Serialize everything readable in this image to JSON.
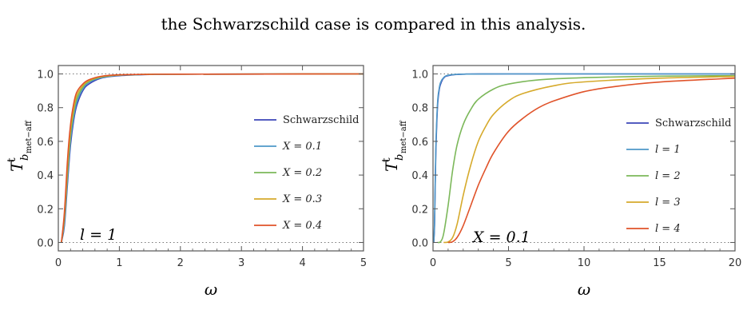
{
  "caption": "the Schwarzschild case is compared in this analysis.",
  "chart_data": [
    {
      "type": "line",
      "title": "",
      "xlabel": "ω",
      "ylabel": "T^t_{b_met-aff}",
      "xlim": [
        0,
        5
      ],
      "ylim": [
        -0.05,
        1.05
      ],
      "xticks": [
        "0",
        "1",
        "2",
        "3",
        "4",
        "5"
      ],
      "yticks": [
        "0.0",
        "0.2",
        "0.4",
        "0.6",
        "0.8",
        "1.0"
      ],
      "annotation": "l = 1",
      "legend_position": "right",
      "reference_lines_dotted": [
        0,
        1
      ],
      "series": [
        {
          "name": "Schwarzschild",
          "color": "#3b46b8",
          "x": [
            0.05,
            0.1,
            0.15,
            0.2,
            0.25,
            0.3,
            0.4,
            0.5,
            0.7,
            1.0,
            1.5,
            2.0,
            5.0
          ],
          "y": [
            0.0,
            0.1,
            0.35,
            0.58,
            0.72,
            0.81,
            0.9,
            0.94,
            0.975,
            0.99,
            0.997,
            0.999,
            1.0
          ]
        },
        {
          "name": "X = 0.1",
          "color": "#4e98c8",
          "x": [
            0.05,
            0.1,
            0.15,
            0.2,
            0.25,
            0.3,
            0.4,
            0.5,
            0.7,
            1.0,
            1.5,
            2.0,
            5.0
          ],
          "y": [
            0.0,
            0.12,
            0.38,
            0.61,
            0.74,
            0.83,
            0.91,
            0.95,
            0.978,
            0.992,
            0.997,
            0.999,
            1.0
          ]
        },
        {
          "name": "X = 0.2",
          "color": "#7cb85a",
          "x": [
            0.05,
            0.1,
            0.15,
            0.2,
            0.25,
            0.3,
            0.4,
            0.5,
            0.7,
            1.0,
            1.5,
            2.0,
            5.0
          ],
          "y": [
            0.0,
            0.14,
            0.41,
            0.64,
            0.77,
            0.85,
            0.92,
            0.955,
            0.981,
            0.993,
            0.998,
            0.999,
            1.0
          ]
        },
        {
          "name": "X = 0.3",
          "color": "#d6aa2c",
          "x": [
            0.05,
            0.1,
            0.15,
            0.2,
            0.25,
            0.3,
            0.4,
            0.5,
            0.7,
            1.0,
            1.5,
            2.0,
            5.0
          ],
          "y": [
            0.0,
            0.16,
            0.45,
            0.67,
            0.79,
            0.87,
            0.93,
            0.96,
            0.984,
            0.994,
            0.998,
            0.999,
            1.0
          ]
        },
        {
          "name": "X = 0.4",
          "color": "#e0532a",
          "x": [
            0.05,
            0.1,
            0.15,
            0.2,
            0.25,
            0.3,
            0.4,
            0.5,
            0.7,
            1.0,
            1.5,
            2.0,
            5.0
          ],
          "y": [
            0.0,
            0.18,
            0.49,
            0.7,
            0.82,
            0.89,
            0.94,
            0.965,
            0.986,
            0.995,
            0.998,
            0.999,
            1.0
          ]
        }
      ]
    },
    {
      "type": "line",
      "title": "",
      "xlabel": "ω",
      "ylabel": "T^t_{b_met-aff}",
      "xlim": [
        0,
        20
      ],
      "ylim": [
        -0.05,
        1.05
      ],
      "xticks": [
        "0",
        "5",
        "10",
        "15",
        "20"
      ],
      "yticks": [
        "0.0",
        "0.2",
        "0.4",
        "0.6",
        "0.8",
        "1.0"
      ],
      "annotation": "X = 0.1",
      "legend_position": "right",
      "reference_lines_dotted": [
        0,
        1
      ],
      "series": [
        {
          "name": "Schwarzschild",
          "color": "#3b46b8",
          "x": [
            0.05,
            0.1,
            0.15,
            0.2,
            0.3,
            0.4,
            0.5,
            0.7,
            1.0,
            2.0,
            5.0,
            20.0
          ],
          "y": [
            0.0,
            0.1,
            0.35,
            0.58,
            0.81,
            0.9,
            0.94,
            0.975,
            0.99,
            0.999,
            1.0,
            1.0
          ]
        },
        {
          "name": "l = 1",
          "color": "#4e98c8",
          "x": [
            0.05,
            0.1,
            0.15,
            0.2,
            0.3,
            0.4,
            0.5,
            0.7,
            1.0,
            2.0,
            5.0,
            20.0
          ],
          "y": [
            0.0,
            0.12,
            0.38,
            0.61,
            0.83,
            0.91,
            0.95,
            0.978,
            0.992,
            0.999,
            1.0,
            1.0
          ]
        },
        {
          "name": "l = 2",
          "color": "#7cb85a",
          "x": [
            0.3,
            0.5,
            0.7,
            1.0,
            1.3,
            1.6,
            2.0,
            2.5,
            3.0,
            4.0,
            5.0,
            7.0,
            10.0,
            15.0,
            20.0
          ],
          "y": [
            0.0,
            0.005,
            0.05,
            0.22,
            0.43,
            0.58,
            0.7,
            0.79,
            0.85,
            0.91,
            0.94,
            0.965,
            0.978,
            0.987,
            0.99
          ]
        },
        {
          "name": "l = 3",
          "color": "#d6aa2c",
          "x": [
            0.7,
            1.0,
            1.3,
            1.6,
            2.0,
            2.5,
            3.0,
            3.5,
            4.0,
            5.0,
            6.0,
            8.0,
            10.0,
            15.0,
            20.0
          ],
          "y": [
            0.0,
            0.003,
            0.03,
            0.11,
            0.28,
            0.46,
            0.6,
            0.69,
            0.76,
            0.84,
            0.885,
            0.93,
            0.953,
            0.975,
            0.985
          ]
        },
        {
          "name": "l = 4",
          "color": "#e0532a",
          "x": [
            1.0,
            1.3,
            1.6,
            2.0,
            2.5,
            3.0,
            3.5,
            4.0,
            5.0,
            6.0,
            7.0,
            8.0,
            10.0,
            12.0,
            15.0,
            20.0
          ],
          "y": [
            0.0,
            0.005,
            0.03,
            0.1,
            0.22,
            0.34,
            0.44,
            0.53,
            0.66,
            0.74,
            0.8,
            0.84,
            0.895,
            0.925,
            0.952,
            0.975
          ]
        }
      ]
    }
  ]
}
